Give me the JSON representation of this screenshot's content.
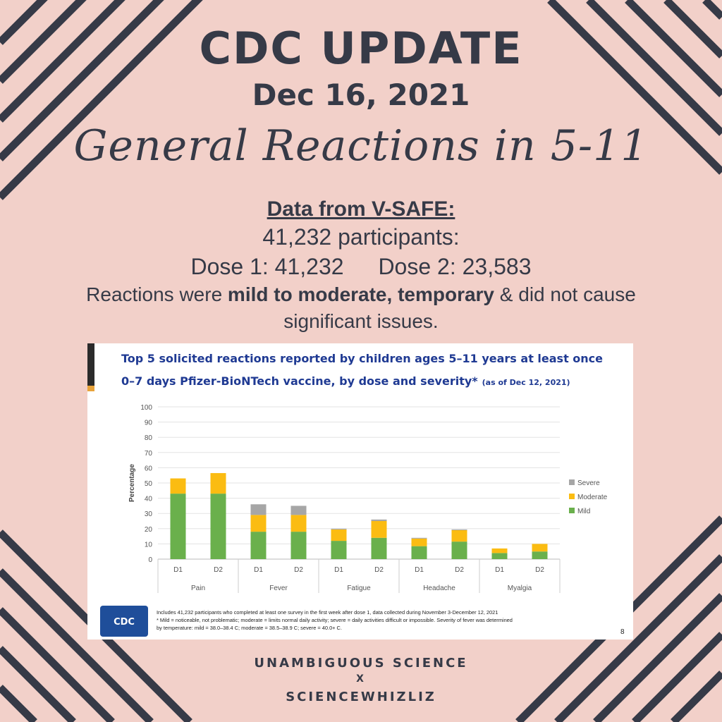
{
  "header": {
    "title": "CDC UPDATE",
    "date": "Dec 16, 2021",
    "script_title": "General Reactions in 5-11"
  },
  "summary": {
    "source": "Data from V-SAFE:",
    "participants": "41,232 participants:",
    "dose1": "Dose 1: 41,232",
    "dose2": "Dose 2: 23,583",
    "reactions_pre": "Reactions were ",
    "reactions_bold": "mild to moderate, temporary",
    "reactions_post": " & did not cause",
    "reactions_line2": "significant issues."
  },
  "slide": {
    "heading_line1": "Top 5 solicited reactions reported by children ages 5–11 years at least once",
    "heading_line2": "0–7 days Pfizer-BioNTech vaccine, by dose and severity*",
    "heading_note": "(as of Dec 12, 2021)",
    "footnote_line1": "Includes 41,232 participants who completed at least one survey in the first week after dose 1, data collected during November 3-December 12, 2021",
    "footnote_line2": "* Mild = noticeable, not problematic; moderate = limits normal daily activity; severe = daily activities difficult or impossible. Severity of fever was determined",
    "footnote_line3": "by temperature: mild = 38.0–38.4 C; moderate = 38.5–38.9 C; severe = 40.0+ C.",
    "logo_text": "CDC",
    "page_number": "8"
  },
  "footer": {
    "line1": "UNAMBIGUOUS SCIENCE",
    "line2": "X",
    "line3": "SCIENCEWHIZLIZ"
  },
  "colors": {
    "background": "#f2d0c9",
    "stripes": "#363a47",
    "mild": "#6ab04c",
    "moderate": "#fbbc12",
    "severe": "#a6a6a6",
    "slide_heading": "#1f3a93"
  },
  "chart_data": {
    "type": "bar",
    "stacked": true,
    "ylabel": "Percentage",
    "ylim": [
      0,
      100
    ],
    "yticks": [
      0,
      10,
      20,
      30,
      40,
      50,
      60,
      70,
      80,
      90,
      100
    ],
    "groups": [
      "Pain",
      "Fever",
      "Fatigue",
      "Headache",
      "Myalgia"
    ],
    "categories": [
      "D1",
      "D2",
      "D1",
      "D2",
      "D1",
      "D2",
      "D1",
      "D2",
      "D1",
      "D2"
    ],
    "series": [
      {
        "name": "Mild",
        "color": "#6ab04c",
        "values": [
          43,
          43,
          18,
          18,
          12,
          14,
          8.5,
          11.5,
          4,
          5
        ]
      },
      {
        "name": "Moderate",
        "color": "#fbbc12",
        "values": [
          10,
          13.5,
          11,
          11,
          7.5,
          11,
          5,
          7.5,
          3,
          5
        ]
      },
      {
        "name": "Severe",
        "color": "#a6a6a6",
        "values": [
          0,
          0,
          7,
          6,
          0.5,
          1,
          0.5,
          0.5,
          0,
          0
        ]
      }
    ],
    "legend": [
      "Severe",
      "Moderate",
      "Mild"
    ],
    "legend_position": "right",
    "grid": true
  }
}
